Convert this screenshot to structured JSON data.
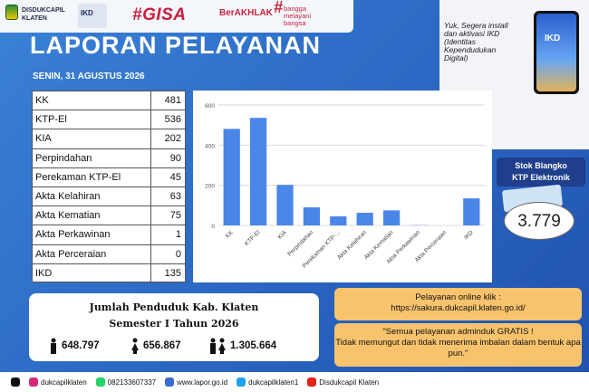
{
  "header": {
    "org": "DISDUKCAPIL\nKLATEN",
    "ikd_label": "IKD",
    "gisa": "#GISA",
    "berakhlak": "BerAKHLAK",
    "bangga": "bangga\nmelayani\nbangsa"
  },
  "title": "LAPORAN PELAYANAN",
  "date": "SENIN, 31 AGUSTUS 2026",
  "promo": "Yuk, Segera install dan aktivasi IKD (Identitas Kependudukan Digital)",
  "phone_label": "IKD",
  "table": [
    {
      "label": "KK",
      "value": "481"
    },
    {
      "label": "KTP-El",
      "value": "536"
    },
    {
      "label": "KIA",
      "value": "202"
    },
    {
      "label": "Perpindahan",
      "value": "90"
    },
    {
      "label": "Perekaman KTP-El",
      "value": "45"
    },
    {
      "label": "Akta Kelahiran",
      "value": "63"
    },
    {
      "label": "Akta Kematian",
      "value": "75"
    },
    {
      "label": "Akta Perkawinan",
      "value": "1"
    },
    {
      "label": "Akta Perceraian",
      "value": "0"
    },
    {
      "label": "IKD",
      "value": "135"
    }
  ],
  "chart_data": {
    "type": "bar",
    "categories": [
      "KK",
      "KTP-El",
      "KIA",
      "Perpindahan",
      "Perekaman KTP-...",
      "Akta Kelahiran",
      "Akta Kematian",
      "Akta Perkawinan",
      "Akta Perceraian",
      "IKD"
    ],
    "values": [
      481,
      536,
      202,
      90,
      45,
      63,
      75,
      1,
      0,
      135
    ],
    "yticks": [
      "0",
      "200",
      "400",
      "600"
    ],
    "ylim": [
      0,
      600
    ],
    "bar_color": "#4a86e8",
    "grid": true
  },
  "stok": {
    "title": "Stok Blangko\nKTP Elektronik",
    "value": "3.779"
  },
  "population": {
    "line1": "Jumlah Penduduk Kab. Klaten",
    "line2": "Semester I Tahun 2026",
    "male": "648.797",
    "female": "656.867",
    "total": "1.305.664"
  },
  "online": {
    "line1": "Pelayanan online klik :",
    "line2": "https://sakura.dukcapil.klaten.go.id/"
  },
  "gratis": "\"Semua pelayanan adminduk GRATIS !\nTidak memungut dan tidak menerima imbalan dalam bentuk apa pun.\"",
  "footer": [
    {
      "icon": "tiktok-icon",
      "color": "#111111",
      "text": ""
    },
    {
      "icon": "instagram-icon",
      "color": "#d6297a",
      "text": "dukcapilklaten"
    },
    {
      "icon": "whatsapp-icon",
      "color": "#25d366",
      "text": "082133607337"
    },
    {
      "icon": "globe-icon",
      "color": "#3a6bd1",
      "text": "www.lapor.go.id"
    },
    {
      "icon": "twitter-icon",
      "color": "#1da1f2",
      "text": "dukcapilklaten1"
    },
    {
      "icon": "youtube-icon",
      "color": "#e62117",
      "text": "Disdukcapil Klaten"
    }
  ]
}
